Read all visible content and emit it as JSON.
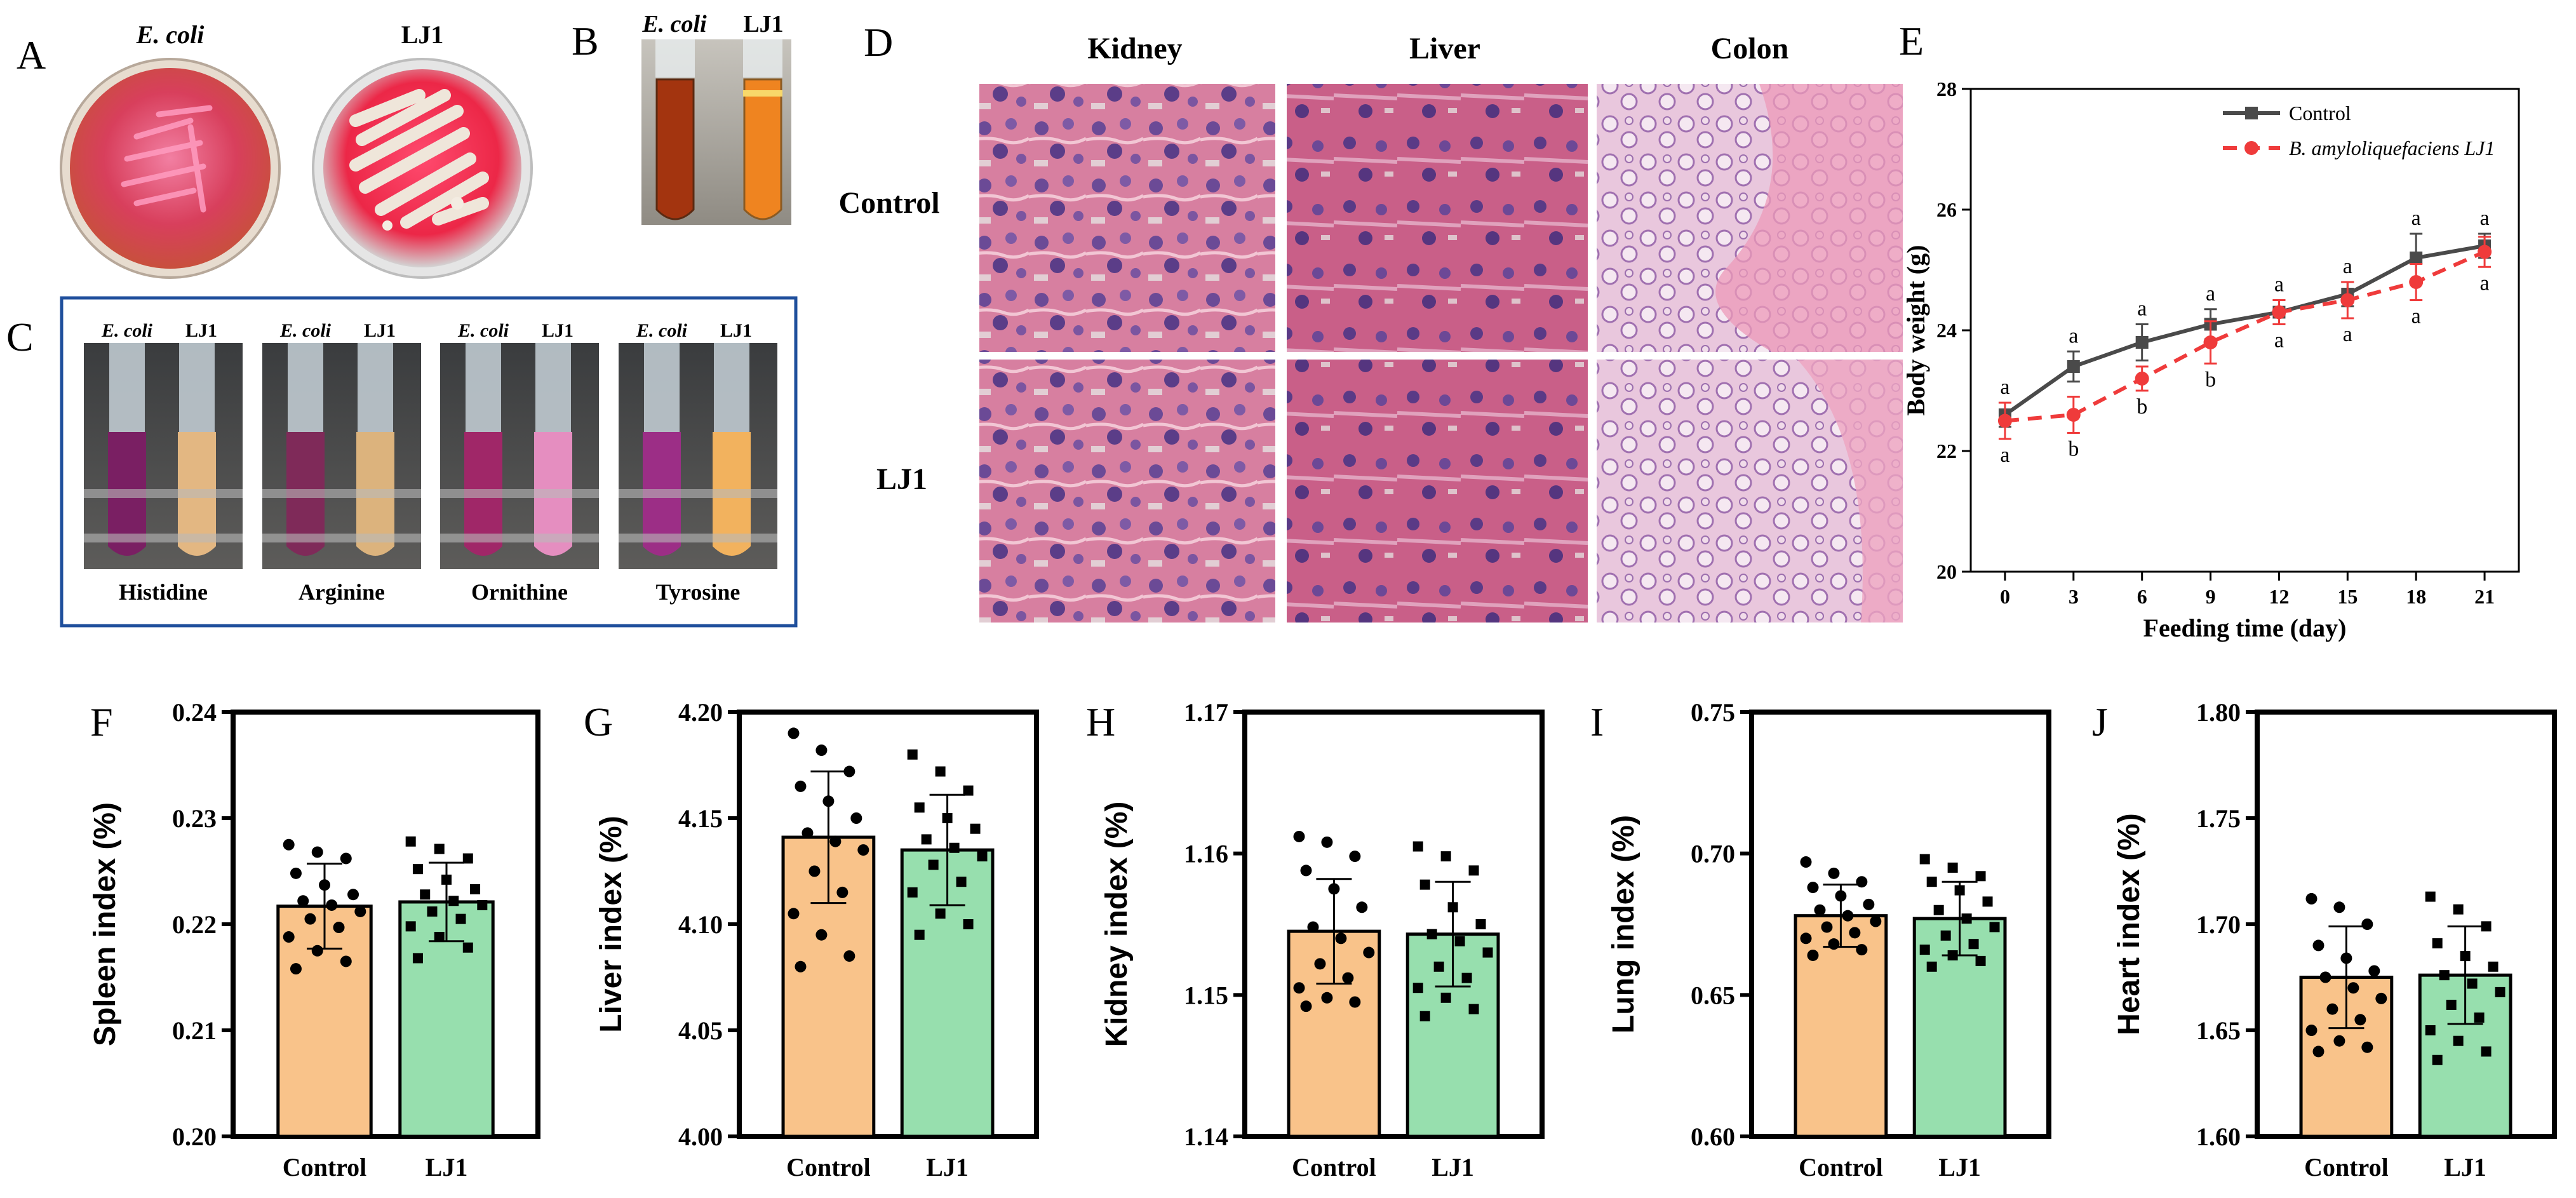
{
  "panels": {
    "A": {
      "letter": "A",
      "plate_labels": [
        "E. coli",
        "LJ1"
      ]
    },
    "B": {
      "letter": "B",
      "tube_labels": [
        "E. coli",
        "LJ1"
      ]
    },
    "C": {
      "letter": "C",
      "group_labels": [
        {
          "left": "E. coli",
          "right": "LJ1",
          "amino": "Histidine"
        },
        {
          "left": "E. coli",
          "right": "LJ1",
          "amino": "Arginine"
        },
        {
          "left": "E. coli",
          "right": "LJ1",
          "amino": "Ornithine"
        },
        {
          "left": "E. coli",
          "right": "LJ1",
          "amino": "Tyrosine"
        }
      ]
    },
    "D": {
      "letter": "D",
      "columns": [
        "Kidney",
        "Liver",
        "Colon"
      ],
      "rows": [
        "Control",
        "LJ1"
      ]
    },
    "E": {
      "letter": "E"
    }
  },
  "colors": {
    "control_bar": "#f9c38a",
    "lj1_bar": "#97dfae",
    "control_line": "#4a4a4a",
    "lj1_line": "#ef3b3b",
    "media_red": "#e8244a",
    "frame_blue": "#1f4f9c"
  },
  "chart_data": [
    {
      "id": "E",
      "type": "line",
      "xlabel": "Feeding time (day)",
      "ylabel": "Body weight (g)",
      "xlim": [
        -1.5,
        22.5
      ],
      "ylim": [
        20,
        28
      ],
      "x": [
        0,
        3,
        6,
        9,
        12,
        15,
        18,
        21
      ],
      "xticks": [
        "0",
        "3",
        "6",
        "9",
        "12",
        "15",
        "18",
        "21"
      ],
      "yticks": [
        "20",
        "22",
        "24",
        "26",
        "28"
      ],
      "legend": "top-right",
      "series": [
        {
          "name": "Control",
          "values": [
            22.6,
            23.4,
            23.8,
            24.1,
            24.3,
            24.6,
            25.2,
            25.4
          ],
          "err": [
            0.2,
            0.25,
            0.3,
            0.25,
            0.2,
            0.2,
            0.4,
            0.2
          ],
          "letters": [
            "a",
            "a",
            "a",
            "a",
            "a",
            "a",
            "a",
            "a"
          ]
        },
        {
          "name": "B. amyloliquefaciens LJ1",
          "values": [
            22.5,
            22.6,
            23.2,
            23.8,
            24.3,
            24.5,
            24.8,
            25.3
          ],
          "err": [
            0.3,
            0.3,
            0.2,
            0.35,
            0.2,
            0.3,
            0.3,
            0.25
          ],
          "letters": [
            "a",
            "b",
            "b",
            "b",
            "a",
            "a",
            "a",
            "a"
          ]
        }
      ]
    },
    {
      "id": "F",
      "letter": "F",
      "type": "bar",
      "ylabel": "Spleen index (%)",
      "categories": [
        "Control",
        "LJ1"
      ],
      "ylim": [
        0.2,
        0.24
      ],
      "yticks": [
        "0.20",
        "0.21",
        "0.22",
        "0.23",
        "0.24"
      ],
      "values": [
        0.2217,
        0.2221
      ],
      "sd": [
        0.004,
        0.0037
      ],
      "points": [
        [
          0.2275,
          0.2268,
          0.2262,
          0.2248,
          0.2237,
          0.2228,
          0.2222,
          0.2218,
          0.2212,
          0.2205,
          0.2197,
          0.2188,
          0.2175,
          0.2165,
          0.2158
        ],
        [
          0.2278,
          0.2271,
          0.2262,
          0.2252,
          0.2242,
          0.2233,
          0.2228,
          0.2222,
          0.2218,
          0.2212,
          0.2205,
          0.2198,
          0.2188,
          0.2178,
          0.2168
        ]
      ]
    },
    {
      "id": "G",
      "letter": "G",
      "type": "bar",
      "ylabel": "Liver index (%)",
      "categories": [
        "Control",
        "LJ1"
      ],
      "ylim": [
        4.0,
        4.2
      ],
      "yticks": [
        "4.00",
        "4.05",
        "4.10",
        "4.15",
        "4.20"
      ],
      "values": [
        4.141,
        4.135
      ],
      "sd": [
        0.031,
        0.026
      ],
      "points": [
        [
          4.19,
          4.182,
          4.172,
          4.165,
          4.158,
          4.15,
          4.143,
          4.139,
          4.135,
          4.125,
          4.115,
          4.105,
          4.095,
          4.085,
          4.08
        ],
        [
          4.18,
          4.172,
          4.163,
          4.155,
          4.15,
          4.145,
          4.14,
          4.136,
          4.132,
          4.128,
          4.12,
          4.115,
          4.105,
          4.1,
          4.095
        ]
      ]
    },
    {
      "id": "H",
      "letter": "H",
      "type": "bar",
      "ylabel": "Kidney index (%)",
      "categories": [
        "Control",
        "LJ1"
      ],
      "ylim": [
        1.14,
        1.17
      ],
      "yticks": [
        "1.14",
        "1.15",
        "1.16",
        "1.17"
      ],
      "values": [
        1.1545,
        1.1543
      ],
      "sd": [
        0.0037,
        0.0037
      ],
      "points": [
        [
          1.1612,
          1.1608,
          1.1598,
          1.1588,
          1.1575,
          1.1562,
          1.1548,
          1.154,
          1.153,
          1.1522,
          1.1512,
          1.1505,
          1.1498,
          1.1495,
          1.1492
        ],
        [
          1.1605,
          1.1598,
          1.1588,
          1.1578,
          1.1562,
          1.155,
          1.1543,
          1.1538,
          1.153,
          1.152,
          1.1512,
          1.1505,
          1.1498,
          1.149,
          1.1485
        ]
      ]
    },
    {
      "id": "I",
      "letter": "I",
      "type": "bar",
      "ylabel": "Lung index (%)",
      "categories": [
        "Control",
        "LJ1"
      ],
      "ylim": [
        0.6,
        0.75
      ],
      "yticks": [
        "0.60",
        "0.65",
        "0.70",
        "0.75"
      ],
      "values": [
        0.678,
        0.677
      ],
      "sd": [
        0.011,
        0.013
      ],
      "points": [
        [
          0.697,
          0.693,
          0.69,
          0.688,
          0.685,
          0.682,
          0.68,
          0.678,
          0.676,
          0.674,
          0.672,
          0.67,
          0.668,
          0.666,
          0.664
        ],
        [
          0.698,
          0.695,
          0.692,
          0.69,
          0.687,
          0.683,
          0.68,
          0.677,
          0.674,
          0.671,
          0.668,
          0.666,
          0.664,
          0.662,
          0.66
        ]
      ]
    },
    {
      "id": "J",
      "letter": "J",
      "type": "bar",
      "ylabel": "Heart index (%)",
      "categories": [
        "Control",
        "LJ1"
      ],
      "ylim": [
        1.6,
        1.8
      ],
      "yticks": [
        "1.60",
        "1.65",
        "1.70",
        "1.75",
        "1.80"
      ],
      "values": [
        1.675,
        1.676
      ],
      "sd": [
        0.024,
        0.023
      ],
      "points": [
        [
          1.712,
          1.708,
          1.7,
          1.69,
          1.684,
          1.678,
          1.675,
          1.67,
          1.665,
          1.66,
          1.655,
          1.65,
          1.645,
          1.642,
          1.64
        ],
        [
          1.713,
          1.707,
          1.699,
          1.691,
          1.685,
          1.68,
          1.676,
          1.672,
          1.668,
          1.662,
          1.656,
          1.65,
          1.645,
          1.64,
          1.636
        ]
      ]
    }
  ]
}
